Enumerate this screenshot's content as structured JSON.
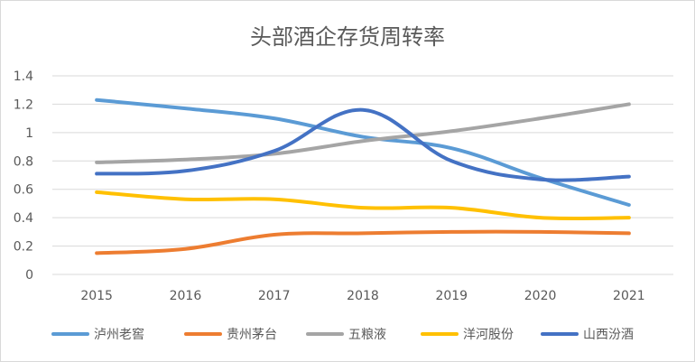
{
  "chart_data": {
    "type": "line",
    "title": "头部酒企存货周转率",
    "xlabel": "",
    "ylabel": "",
    "categories": [
      "2015",
      "2016",
      "2017",
      "2018",
      "2019",
      "2020",
      "2021"
    ],
    "ylim": [
      0,
      1.4
    ],
    "yticks": [
      "0",
      "0.2",
      "0.4",
      "0.6",
      "0.8",
      "1",
      "1.2",
      "1.4"
    ],
    "grid": true,
    "smooth": true,
    "legend_position": "bottom",
    "series": [
      {
        "name": "泸州老窖",
        "color": "#5b9bd5",
        "values": [
          1.23,
          1.17,
          1.1,
          0.97,
          0.89,
          0.68,
          0.49
        ]
      },
      {
        "name": "贵州茅台",
        "color": "#ed7d31",
        "values": [
          0.15,
          0.18,
          0.28,
          0.29,
          0.3,
          0.3,
          0.29
        ]
      },
      {
        "name": "五粮液",
        "color": "#a5a5a5",
        "values": [
          0.79,
          0.81,
          0.85,
          0.94,
          1.01,
          1.1,
          1.2
        ]
      },
      {
        "name": "洋河股份",
        "color": "#ffc000",
        "values": [
          0.58,
          0.53,
          0.53,
          0.47,
          0.47,
          0.4,
          0.4
        ]
      },
      {
        "name": "山西汾酒",
        "color": "#4472c4",
        "values": [
          0.71,
          0.73,
          0.87,
          1.16,
          0.8,
          0.67,
          0.69
        ]
      }
    ]
  }
}
